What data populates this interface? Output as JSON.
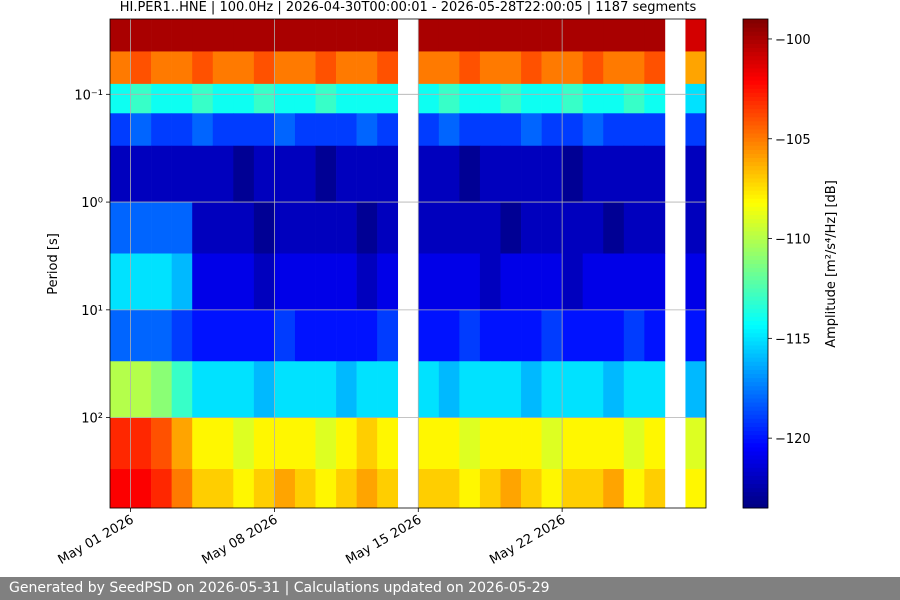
{
  "chart_data": {
    "type": "heatmap",
    "title": "HI.PER1..HNE | 100.0Hz | 2026-04-30T00:00:01 - 2026-05-28T22:00:05 | 1187 segments",
    "ylabel": "Period [s]",
    "colorbar_label": "Amplitude [m²/s⁴/Hz] [dB]",
    "colormap": "jet",
    "clim": [
      -123.5,
      -99
    ],
    "cticks": [
      {
        "value": -100,
        "label": "−100"
      },
      {
        "value": -105,
        "label": "−105"
      },
      {
        "value": -110,
        "label": "−110"
      },
      {
        "value": -115,
        "label": "−115"
      },
      {
        "value": -120,
        "label": "−120"
      }
    ],
    "y_log": true,
    "y_inverted": true,
    "grid": true,
    "ylim": [
      0.02,
      690
    ],
    "yticks": [
      {
        "value": 0.1,
        "label": "10⁻¹"
      },
      {
        "value": 1,
        "label": "10⁰"
      },
      {
        "value": 10,
        "label": "10¹"
      },
      {
        "value": 100,
        "label": "10²"
      }
    ],
    "xlim": [
      "2026-04-30",
      "2026-05-29"
    ],
    "xticks": [
      {
        "value": "2026-05-01",
        "label": "May 01 2026"
      },
      {
        "value": "2026-05-08",
        "label": "May 08 2026"
      },
      {
        "value": "2026-05-15",
        "label": "May 15 2026"
      },
      {
        "value": "2026-05-22",
        "label": "May 22 2026"
      }
    ],
    "x": [
      "2026-04-30",
      "2026-05-01",
      "2026-05-02",
      "2026-05-03",
      "2026-05-04",
      "2026-05-05",
      "2026-05-06",
      "2026-05-07",
      "2026-05-08",
      "2026-05-09",
      "2026-05-10",
      "2026-05-11",
      "2026-05-12",
      "2026-05-13",
      "2026-05-14",
      "2026-05-15",
      "2026-05-16",
      "2026-05-17",
      "2026-05-18",
      "2026-05-19",
      "2026-05-20",
      "2026-05-21",
      "2026-05-22",
      "2026-05-23",
      "2026-05-24",
      "2026-05-25",
      "2026-05-26",
      "2026-05-27",
      "2026-05-28"
    ],
    "y_bins": [
      0.02,
      0.04,
      0.08,
      0.15,
      0.3,
      1,
      3,
      10,
      30,
      100,
      300,
      690
    ],
    "values": [
      [
        -100,
        -100,
        -100,
        -100,
        -100,
        -100,
        -100,
        -100,
        -100,
        -100,
        -100,
        -100,
        -100,
        -100,
        null,
        -100,
        -100,
        -100,
        -100,
        -100,
        -100,
        -100,
        -100,
        -100,
        -100,
        -100,
        -100,
        null,
        -101
      ],
      [
        -105,
        -104,
        -105,
        -105,
        -104,
        -105,
        -105,
        -104,
        -105,
        -105,
        -104,
        -105,
        -105,
        -104,
        null,
        -105,
        -105,
        -104,
        -105,
        -105,
        -104,
        -105,
        -105,
        -104,
        -105,
        -105,
        -104,
        null,
        -106
      ],
      [
        -114,
        -113,
        -114,
        -114,
        -113,
        -114,
        -114,
        -113,
        -114,
        -114,
        -113,
        -114,
        -114,
        -114,
        null,
        -114,
        -113,
        -114,
        -114,
        -113,
        -114,
        -114,
        -113,
        -114,
        -114,
        -113,
        -114,
        null,
        -115
      ],
      [
        -119,
        -118,
        -119,
        -119,
        -118,
        -119,
        -119,
        -119,
        -118,
        -119,
        -119,
        -119,
        -118,
        -119,
        null,
        -119,
        -118,
        -119,
        -119,
        -119,
        -118,
        -119,
        -119,
        -118,
        -119,
        -119,
        -119,
        null,
        -119
      ],
      [
        -122,
        -122,
        -122,
        -122,
        -122,
        -122,
        -123,
        -122,
        -122,
        -122,
        -123,
        -122,
        -122,
        -122,
        null,
        -122,
        -122,
        -123,
        -122,
        -122,
        -122,
        -122,
        -123,
        -122,
        -122,
        -122,
        -122,
        null,
        -122
      ],
      [
        -118,
        -118,
        -118,
        -118,
        -122,
        -122,
        -122,
        -123,
        -122,
        -122,
        -122,
        -122,
        -123,
        -122,
        null,
        -122,
        -122,
        -122,
        -122,
        -123,
        -122,
        -122,
        -122,
        -122,
        -123,
        -122,
        -122,
        null,
        -122
      ],
      [
        -115,
        -115,
        -115,
        -116,
        -121,
        -121,
        -121,
        -122,
        -121,
        -121,
        -121,
        -121,
        -122,
        -121,
        null,
        -121,
        -121,
        -121,
        -122,
        -121,
        -121,
        -121,
        -122,
        -121,
        -121,
        -121,
        -121,
        null,
        -121
      ],
      [
        -118,
        -118,
        -118,
        -119,
        -120,
        -120,
        -120,
        -120,
        -119,
        -120,
        -120,
        -120,
        -120,
        -119,
        null,
        -120,
        -120,
        -119,
        -120,
        -120,
        -120,
        -119,
        -120,
        -120,
        -120,
        -119,
        -120,
        null,
        -120
      ],
      [
        -110,
        -110,
        -111,
        -113,
        -115,
        -115,
        -115,
        -116,
        -115,
        -115,
        -115,
        -116,
        -115,
        -115,
        null,
        -115,
        -116,
        -115,
        -115,
        -115,
        -116,
        -115,
        -115,
        -115,
        -116,
        -115,
        -115,
        null,
        -116
      ],
      [
        -103,
        -103,
        -104,
        -106,
        -108,
        -108,
        -109,
        -108,
        -108,
        -108,
        -109,
        -108,
        -107,
        -108,
        null,
        -108,
        -108,
        -109,
        -108,
        -108,
        -108,
        -109,
        -108,
        -108,
        -108,
        -109,
        -108,
        null,
        -109
      ],
      [
        -102,
        -102,
        -103,
        -105,
        -107,
        -107,
        -108,
        -107,
        -106,
        -107,
        -108,
        -107,
        -106,
        -107,
        null,
        -107,
        -107,
        -108,
        -107,
        -106,
        -107,
        -108,
        -107,
        -107,
        -106,
        -108,
        -107,
        null,
        -108
      ]
    ]
  },
  "footer": "Generated by SeedPSD on 2026-05-31 | Calculations updated on 2026-05-29"
}
